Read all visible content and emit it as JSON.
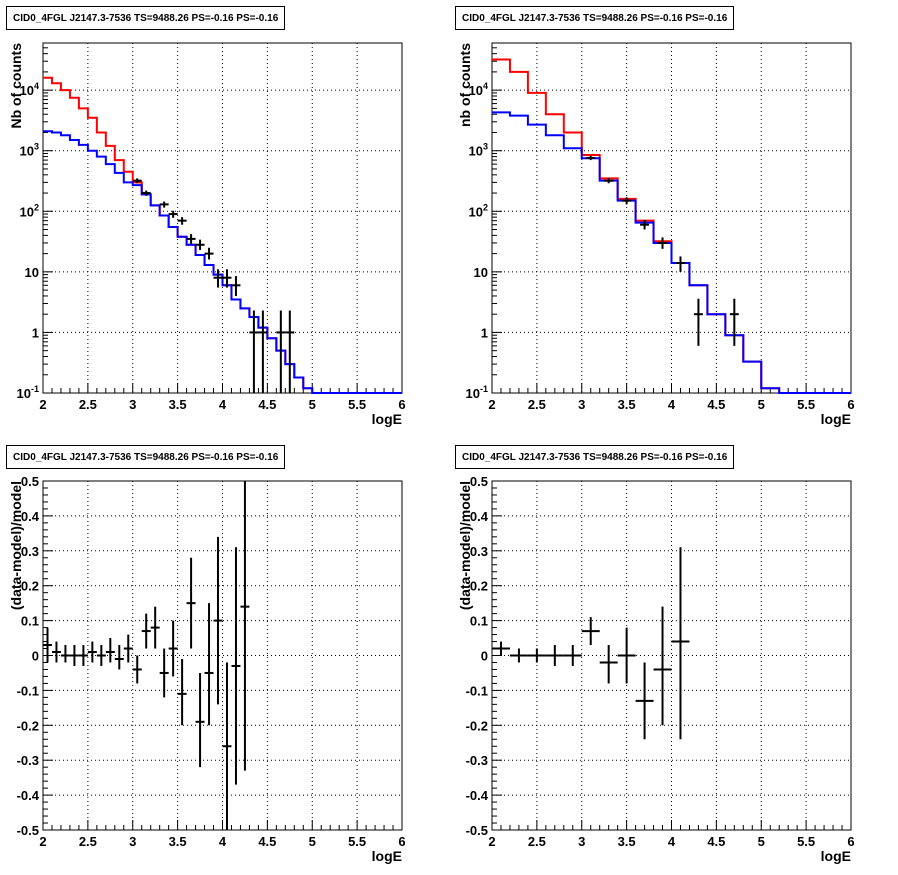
{
  "chart_data": [
    {
      "type": "line",
      "panel_title": "CID0_4FGL J2147.3-7536 TS=9488.26 PS=-0.16 PS=-0.16",
      "xlabel": "logE",
      "ylabel": "Nb of counts",
      "xlim": [
        2,
        6
      ],
      "ylim": [
        0.1,
        60000
      ],
      "log_y": true,
      "grid": true,
      "x_tick_labels": [
        "2",
        "2.5",
        "3",
        "3.5",
        "4",
        "4.5",
        "5",
        "5.5",
        "6"
      ],
      "y_tick_labels": [
        "10⁻¹",
        "1",
        "10",
        "10²",
        "10³",
        "10⁴"
      ],
      "bin_edges": [
        2.0,
        2.1,
        2.2,
        2.3,
        2.4,
        2.5,
        2.6,
        2.7,
        2.8,
        2.9,
        3.0,
        3.1,
        3.2,
        3.3,
        3.4,
        3.5,
        3.6,
        3.7,
        3.8,
        3.9,
        4.0,
        4.1,
        4.2,
        4.3,
        4.4,
        4.5,
        4.6,
        4.7,
        4.8,
        4.9,
        5.0,
        5.1,
        5.2,
        5.3,
        5.4,
        5.5,
        5.6,
        5.7,
        5.8,
        5.9,
        6.0
      ],
      "series": [
        {
          "color": "#ff0000",
          "style": "step",
          "values": [
            16000,
            13000,
            10000,
            7500,
            5000,
            3500,
            2000,
            1200,
            700,
            450,
            300,
            190,
            125,
            85,
            55,
            38,
            28,
            19,
            13,
            9,
            6,
            3.5,
            2.5,
            1.8,
            1.2,
            0.8,
            0.5,
            0.3,
            0.18,
            0.12,
            0.1,
            0.1,
            0.1,
            0.1,
            0.1,
            0.1,
            0.1,
            0.1,
            0.1,
            0.1
          ]
        },
        {
          "color": "#0000ff",
          "style": "step",
          "values": [
            2100,
            2000,
            1800,
            1500,
            1250,
            1000,
            800,
            600,
            430,
            300,
            270,
            190,
            125,
            85,
            55,
            38,
            28,
            19,
            13,
            9,
            6,
            3.5,
            2.5,
            1.8,
            1.2,
            0.8,
            0.5,
            0.3,
            0.18,
            0.12,
            0.1,
            0.1,
            0.1,
            0.1,
            0.1,
            0.1,
            0.1,
            0.1,
            0.1,
            0.1
          ]
        },
        {
          "color": "#000000",
          "style": "errorbar",
          "points": [
            {
              "x": 3.05,
              "y": 320,
              "lo": 290,
              "hi": 350
            },
            {
              "x": 3.15,
              "y": 200,
              "lo": 180,
              "hi": 220
            },
            {
              "x": 3.35,
              "y": 130,
              "lo": 115,
              "hi": 145
            },
            {
              "x": 3.45,
              "y": 90,
              "lo": 78,
              "hi": 102
            },
            {
              "x": 3.55,
              "y": 70,
              "lo": 60,
              "hi": 80
            },
            {
              "x": 3.65,
              "y": 35,
              "lo": 29,
              "hi": 42
            },
            {
              "x": 3.75,
              "y": 28,
              "lo": 23,
              "hi": 34
            },
            {
              "x": 3.85,
              "y": 20,
              "lo": 16,
              "hi": 25
            },
            {
              "x": 3.95,
              "y": 8,
              "lo": 5.5,
              "hi": 11
            },
            {
              "x": 4.05,
              "y": 8,
              "lo": 5.5,
              "hi": 11
            },
            {
              "x": 4.15,
              "y": 6,
              "lo": 4,
              "hi": 8.5
            },
            {
              "x": 4.35,
              "y": 1,
              "lo": 0.1,
              "hi": 2.3
            },
            {
              "x": 4.45,
              "y": 1,
              "lo": 0.1,
              "hi": 2.3
            },
            {
              "x": 4.65,
              "y": 1,
              "lo": 0.1,
              "hi": 2.3
            },
            {
              "x": 4.75,
              "y": 1,
              "lo": 0.1,
              "hi": 2.3
            }
          ]
        }
      ]
    },
    {
      "type": "line",
      "panel_title": "CID0_4FGL J2147.3-7536 TS=9488.26 PS=-0.16 PS=-0.16",
      "xlabel": "logE",
      "ylabel": "nb of counts",
      "xlim": [
        2,
        6
      ],
      "ylim": [
        0.1,
        60000
      ],
      "log_y": true,
      "grid": true,
      "x_tick_labels": [
        "2",
        "2.5",
        "3",
        "3.5",
        "4",
        "4.5",
        "5",
        "5.5",
        "6"
      ],
      "y_tick_labels": [
        "10⁻¹",
        "1",
        "10",
        "10²",
        "10³",
        "10⁴"
      ],
      "bin_edges": [
        2.0,
        2.2,
        2.4,
        2.6,
        2.8,
        3.0,
        3.2,
        3.4,
        3.6,
        3.8,
        4.0,
        4.2,
        4.4,
        4.6,
        4.8,
        5.0,
        5.2,
        5.4,
        5.6,
        5.8,
        6.0
      ],
      "series": [
        {
          "color": "#ff0000",
          "style": "step",
          "values": [
            32000,
            20000,
            9000,
            4000,
            2000,
            850,
            350,
            160,
            70,
            32,
            14,
            6,
            2,
            0.9,
            0.33,
            0.12,
            0.1,
            0.1,
            0.1,
            0.1
          ]
        },
        {
          "color": "#0000ff",
          "style": "step",
          "values": [
            4300,
            3800,
            2700,
            1800,
            1100,
            750,
            320,
            150,
            65,
            30,
            14,
            6,
            2,
            0.9,
            0.33,
            0.12,
            0.1,
            0.1,
            0.1,
            0.1
          ]
        },
        {
          "color": "#000000",
          "style": "errorbar",
          "points": [
            {
              "x": 3.1,
              "y": 760,
              "lo": 700,
              "hi": 820
            },
            {
              "x": 3.3,
              "y": 320,
              "lo": 290,
              "hi": 355
            },
            {
              "x": 3.5,
              "y": 150,
              "lo": 130,
              "hi": 170
            },
            {
              "x": 3.7,
              "y": 60,
              "lo": 50,
              "hi": 72
            },
            {
              "x": 3.9,
              "y": 30,
              "lo": 24,
              "hi": 37
            },
            {
              "x": 4.1,
              "y": 14,
              "lo": 10,
              "hi": 18
            },
            {
              "x": 4.3,
              "y": 2,
              "lo": 0.6,
              "hi": 3.6
            },
            {
              "x": 4.7,
              "y": 2,
              "lo": 0.6,
              "hi": 3.6
            }
          ]
        }
      ]
    },
    {
      "type": "scatter",
      "panel_title": "CID0_4FGL J2147.3-7536 TS=9488.26 PS=-0.16 PS=-0.16",
      "xlabel": "logE",
      "ylabel": "(data-model)/model",
      "xlim": [
        2,
        6
      ],
      "ylim": [
        -0.5,
        0.5
      ],
      "log_y": false,
      "grid": true,
      "x_tick_labels": [
        "2",
        "2.5",
        "3",
        "3.5",
        "4",
        "4.5",
        "5",
        "5.5",
        "6"
      ],
      "y_tick_labels": [
        "−0.5",
        "−0.4",
        "−0.3",
        "−0.2",
        "−0.1",
        "0",
        "0.1",
        "0.2",
        "0.3",
        "0.4",
        "0.5"
      ],
      "series": [
        {
          "color": "#000000",
          "style": "errorbar",
          "xerr": 0.05,
          "points": [
            {
              "x": 2.05,
              "y": 0.03,
              "lo": -0.02,
              "hi": 0.08
            },
            {
              "x": 2.15,
              "y": 0.01,
              "lo": -0.02,
              "hi": 0.04
            },
            {
              "x": 2.25,
              "y": 0.0,
              "lo": -0.02,
              "hi": 0.03
            },
            {
              "x": 2.35,
              "y": 0.0,
              "lo": -0.03,
              "hi": 0.03
            },
            {
              "x": 2.45,
              "y": 0.0,
              "lo": -0.03,
              "hi": 0.03
            },
            {
              "x": 2.55,
              "y": 0.01,
              "lo": -0.02,
              "hi": 0.04
            },
            {
              "x": 2.65,
              "y": 0.0,
              "lo": -0.03,
              "hi": 0.03
            },
            {
              "x": 2.75,
              "y": 0.01,
              "lo": -0.02,
              "hi": 0.05
            },
            {
              "x": 2.85,
              "y": -0.01,
              "lo": -0.04,
              "hi": 0.03
            },
            {
              "x": 2.95,
              "y": 0.02,
              "lo": -0.02,
              "hi": 0.06
            },
            {
              "x": 3.05,
              "y": -0.04,
              "lo": -0.08,
              "hi": 0.0
            },
            {
              "x": 3.15,
              "y": 0.07,
              "lo": 0.02,
              "hi": 0.12
            },
            {
              "x": 3.25,
              "y": 0.08,
              "lo": 0.02,
              "hi": 0.14
            },
            {
              "x": 3.35,
              "y": -0.05,
              "lo": -0.12,
              "hi": 0.02
            },
            {
              "x": 3.45,
              "y": 0.02,
              "lo": -0.06,
              "hi": 0.1
            },
            {
              "x": 3.55,
              "y": -0.11,
              "lo": -0.2,
              "hi": -0.01
            },
            {
              "x": 3.65,
              "y": 0.15,
              "lo": 0.02,
              "hi": 0.28
            },
            {
              "x": 3.75,
              "y": -0.19,
              "lo": -0.32,
              "hi": -0.05
            },
            {
              "x": 3.85,
              "y": -0.05,
              "lo": -0.2,
              "hi": 0.15
            },
            {
              "x": 3.95,
              "y": 0.1,
              "lo": -0.14,
              "hi": 0.34
            },
            {
              "x": 4.05,
              "y": -0.26,
              "lo": -0.5,
              "hi": -0.02
            },
            {
              "x": 4.15,
              "y": -0.03,
              "lo": -0.37,
              "hi": 0.31
            },
            {
              "x": 4.25,
              "y": 0.14,
              "lo": -0.33,
              "hi": 0.5
            }
          ]
        }
      ]
    },
    {
      "type": "scatter",
      "panel_title": "CID0_4FGL J2147.3-7536 TS=9488.26 PS=-0.16 PS=-0.16",
      "xlabel": "logE",
      "ylabel": "(data-model)/model",
      "xlim": [
        2,
        6
      ],
      "ylim": [
        -0.5,
        0.5
      ],
      "log_y": false,
      "grid": true,
      "x_tick_labels": [
        "2",
        "2.5",
        "3",
        "3.5",
        "4",
        "4.5",
        "5",
        "5.5",
        "6"
      ],
      "y_tick_labels": [
        "−0.5",
        "−0.4",
        "−0.3",
        "−0.2",
        "−0.1",
        "0",
        "0.1",
        "0.2",
        "0.3",
        "0.4",
        "0.5"
      ],
      "series": [
        {
          "color": "#000000",
          "style": "errorbar",
          "xerr": 0.1,
          "points": [
            {
              "x": 2.1,
              "y": 0.02,
              "lo": 0.0,
              "hi": 0.04
            },
            {
              "x": 2.3,
              "y": 0.0,
              "lo": -0.02,
              "hi": 0.02
            },
            {
              "x": 2.5,
              "y": 0.0,
              "lo": -0.02,
              "hi": 0.02
            },
            {
              "x": 2.7,
              "y": 0.0,
              "lo": -0.03,
              "hi": 0.03
            },
            {
              "x": 2.9,
              "y": 0.0,
              "lo": -0.03,
              "hi": 0.03
            },
            {
              "x": 3.1,
              "y": 0.07,
              "lo": 0.03,
              "hi": 0.11
            },
            {
              "x": 3.3,
              "y": -0.02,
              "lo": -0.08,
              "hi": 0.03
            },
            {
              "x": 3.5,
              "y": 0.0,
              "lo": -0.08,
              "hi": 0.08
            },
            {
              "x": 3.7,
              "y": -0.13,
              "lo": -0.24,
              "hi": -0.02
            },
            {
              "x": 3.9,
              "y": -0.04,
              "lo": -0.2,
              "hi": 0.14
            },
            {
              "x": 4.1,
              "y": 0.04,
              "lo": -0.24,
              "hi": 0.31
            }
          ]
        }
      ]
    }
  ]
}
